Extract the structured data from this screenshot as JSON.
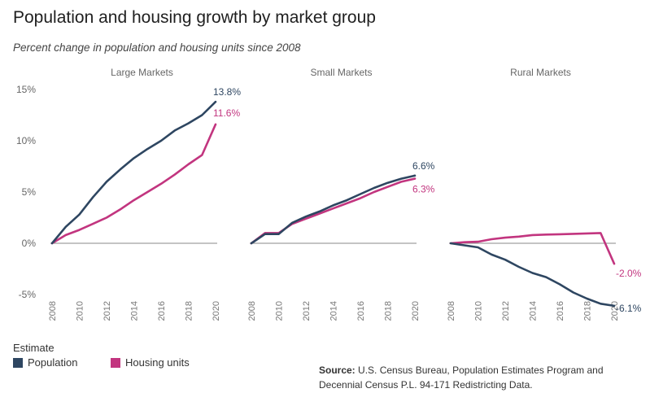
{
  "title": "Population and housing growth by market group",
  "subtitle": "Percent change in population and housing units since 2008",
  "legend": {
    "title": "Estimate",
    "items": [
      {
        "label": "Population",
        "color": "#2e4661"
      },
      {
        "label": "Housing units",
        "color": "#c2357f"
      }
    ]
  },
  "source": {
    "label": "Source:",
    "text": "U.S. Census Bureau, Population Estimates Program and Decennial Census P.L. 94-171 Redistricting Data."
  },
  "chart_data": {
    "type": "line",
    "ylim": [
      -6.5,
      15
    ],
    "yticks": [
      15,
      10,
      5,
      0,
      -5
    ],
    "ytick_labels": [
      "15%",
      "10%",
      "5%",
      "0%",
      "-5%"
    ],
    "x": [
      2008,
      2009,
      2010,
      2011,
      2012,
      2013,
      2014,
      2015,
      2016,
      2017,
      2018,
      2019,
      2020
    ],
    "xtick_labels": [
      "2008",
      "2010",
      "2012",
      "2014",
      "2016",
      "2018",
      "2020"
    ],
    "grid": false,
    "colors": {
      "Population": "#2e4661",
      "Housing units": "#c2357f",
      "zero_line": "#888888"
    },
    "panels": [
      {
        "name": "Large Markets",
        "series": [
          {
            "name": "Population",
            "values": [
              0,
              1.6,
              2.8,
              4.5,
              6.0,
              7.2,
              8.3,
              9.2,
              10.0,
              11.0,
              11.7,
              12.5,
              13.8
            ],
            "end_label": "13.8%"
          },
          {
            "name": "Housing units",
            "values": [
              0,
              0.8,
              1.3,
              1.9,
              2.5,
              3.3,
              4.2,
              5.0,
              5.8,
              6.7,
              7.7,
              8.6,
              11.6
            ],
            "end_label": "11.6%"
          }
        ]
      },
      {
        "name": "Small Markets",
        "series": [
          {
            "name": "Population",
            "values": [
              0,
              0.9,
              0.9,
              2.0,
              2.6,
              3.1,
              3.7,
              4.2,
              4.8,
              5.4,
              5.9,
              6.3,
              6.6
            ],
            "end_label": "6.6%"
          },
          {
            "name": "Housing units",
            "values": [
              0,
              1.0,
              1.0,
              1.9,
              2.4,
              2.9,
              3.4,
              3.9,
              4.4,
              5.0,
              5.5,
              6.0,
              6.3
            ],
            "end_label": "6.3%"
          }
        ]
      },
      {
        "name": "Rural Markets",
        "series": [
          {
            "name": "Population",
            "values": [
              0,
              -0.2,
              -0.4,
              -1.1,
              -1.6,
              -2.3,
              -2.9,
              -3.3,
              -4.0,
              -4.8,
              -5.4,
              -5.9,
              -6.1
            ],
            "end_label": "-6.1%"
          },
          {
            "name": "Housing units",
            "values": [
              0,
              0.1,
              0.15,
              0.4,
              0.55,
              0.65,
              0.8,
              0.85,
              0.88,
              0.92,
              0.96,
              1.0,
              -2.0
            ],
            "end_label": "-2.0%"
          }
        ]
      }
    ]
  }
}
